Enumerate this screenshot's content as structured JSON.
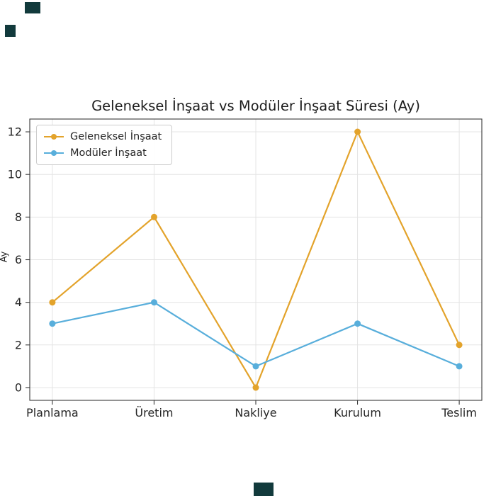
{
  "page": {
    "background": "#ffffff"
  },
  "decor": {
    "square_color": "#123a3c"
  },
  "chart_data": {
    "type": "line",
    "title": "Geleneksel İnşaat vs Modüler İnşaat Süresi (Ay)",
    "xlabel": "",
    "ylabel": "Ay",
    "categories": [
      "Planlama",
      "Üretim",
      "Nakliye",
      "Kurulum",
      "Teslim"
    ],
    "series": [
      {
        "name": "Geleneksel İnşaat",
        "color": "#e3a32b",
        "values": [
          4,
          8,
          0,
          12,
          2
        ]
      },
      {
        "name": "Modüler İnşaat",
        "color": "#58aedb",
        "values": [
          3,
          4,
          1,
          3,
          1
        ]
      }
    ],
    "yticks": [
      0,
      2,
      4,
      6,
      8,
      10,
      12
    ],
    "ylim": [
      -0.6,
      12.6
    ],
    "grid": true,
    "legend_position": "upper left"
  }
}
